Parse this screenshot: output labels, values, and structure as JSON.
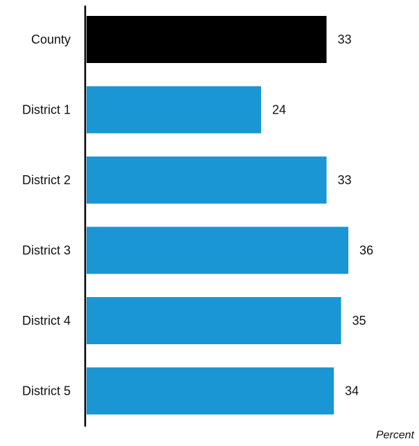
{
  "chart_data": {
    "type": "bar",
    "orientation": "horizontal",
    "categories": [
      "County",
      "District 1",
      "District 2",
      "District 3",
      "District 4",
      "District 5"
    ],
    "values": [
      33,
      24,
      33,
      36,
      35,
      34
    ],
    "xlabel": "Percent",
    "ylabel": "",
    "title": "",
    "xlim": [
      0,
      39
    ],
    "grid": false,
    "legend": "none",
    "colors": {
      "highlight": "#000000",
      "bar": "#1a96d4",
      "axis": "#000000"
    }
  }
}
